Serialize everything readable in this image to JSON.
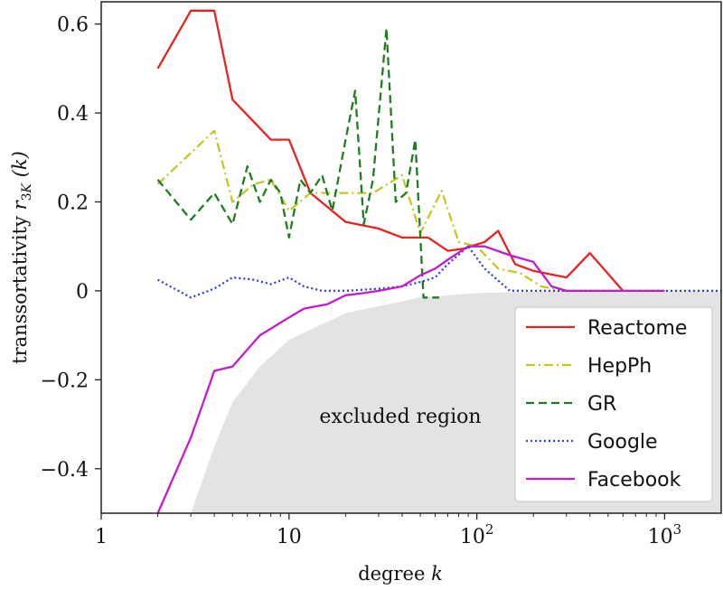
{
  "chart_data": {
    "type": "line",
    "xscale": "log",
    "xlim": [
      1,
      2000
    ],
    "ylim": [
      -0.5,
      0.65
    ],
    "xlabel": "degree k",
    "ylabel": "transsortativity r3K (k)",
    "xticks": [
      {
        "value": 1,
        "label": "1"
      },
      {
        "value": 10,
        "label": "10"
      },
      {
        "value": 100,
        "label": "10",
        "sup": "2"
      },
      {
        "value": 1000,
        "label": "10",
        "sup": "3"
      }
    ],
    "yticks": [
      {
        "value": 0.6,
        "label": "0.6"
      },
      {
        "value": 0.4,
        "label": "0.4"
      },
      {
        "value": 0.2,
        "label": "0.2"
      },
      {
        "value": 0,
        "label": "0"
      },
      {
        "value": -0.2,
        "label": "−0.2"
      },
      {
        "value": -0.4,
        "label": "−0.4"
      }
    ],
    "annotation": "excluded region",
    "excluded_region_boundary": [
      [
        3,
        -0.5
      ],
      [
        4,
        -0.35
      ],
      [
        5,
        -0.25
      ],
      [
        7,
        -0.17
      ],
      [
        10,
        -0.11
      ],
      [
        20,
        -0.05
      ],
      [
        50,
        -0.015
      ],
      [
        100,
        -0.005
      ],
      [
        300,
        0
      ],
      [
        2000,
        0
      ]
    ],
    "legend_position": "lower-right",
    "series": [
      {
        "name": "Reactome",
        "color": "#e8231f",
        "style": "solid",
        "x": [
          2,
          3,
          4,
          5,
          6.5,
          8,
          10,
          13,
          20,
          30,
          40,
          55,
          70,
          85,
          110,
          130,
          160,
          200,
          300,
          400,
          600
        ],
        "y": [
          0.5,
          0.63,
          0.63,
          0.43,
          0.38,
          0.34,
          0.34,
          0.22,
          0.155,
          0.14,
          0.12,
          0.12,
          0.09,
          0.095,
          0.11,
          0.135,
          0.06,
          0.045,
          0.03,
          0.085,
          0
        ]
      },
      {
        "name": "HepPh",
        "color": "#c6c627",
        "style": "dashdot",
        "x": [
          2,
          4,
          5,
          6.5,
          8,
          10,
          13,
          20,
          28,
          40,
          50,
          65,
          80,
          100,
          130,
          170,
          220,
          300
        ],
        "y": [
          0.24,
          0.36,
          0.2,
          0.24,
          0.25,
          0.18,
          0.22,
          0.22,
          0.22,
          0.26,
          0.13,
          0.225,
          0.11,
          0.1,
          0.05,
          0.04,
          0.01,
          0
        ]
      },
      {
        "name": "GR",
        "color": "#1e7d1e",
        "style": "dashed",
        "x": [
          2,
          3,
          4,
          5,
          6,
          7,
          8,
          9,
          10,
          11.5,
          13,
          15,
          17,
          20,
          22.5,
          25,
          28,
          33,
          37,
          42,
          47,
          52,
          57,
          63
        ],
        "y": [
          0.25,
          0.16,
          0.22,
          0.15,
          0.28,
          0.2,
          0.25,
          0.22,
          0.12,
          0.25,
          0.22,
          0.26,
          0.18,
          0.34,
          0.45,
          0.15,
          0.25,
          0.59,
          0.2,
          0.22,
          0.34,
          -0.015,
          -0.015,
          -0.015
        ]
      },
      {
        "name": "Google",
        "color": "#2e3de0",
        "style": "dotted",
        "x": [
          2,
          3,
          4,
          5,
          6.5,
          8,
          10,
          12,
          15,
          20,
          30,
          40,
          50,
          60,
          70,
          90,
          110,
          150,
          300,
          1000,
          2000
        ],
        "y": [
          0.025,
          -0.015,
          0.005,
          0.03,
          0.025,
          0.015,
          0.03,
          0.01,
          0,
          0,
          0.005,
          0.01,
          0.02,
          0.03,
          0.06,
          0.1,
          0.05,
          0,
          0,
          0,
          0
        ]
      },
      {
        "name": "Facebook",
        "color": "#c21ccc",
        "style": "solid",
        "x": [
          2,
          3,
          3.5,
          4,
          5,
          7,
          10,
          12,
          16,
          20,
          25,
          30,
          40,
          50,
          60,
          70,
          90,
          110,
          150,
          200,
          250,
          300,
          1000
        ],
        "y": [
          -0.5,
          -0.33,
          -0.25,
          -0.18,
          -0.17,
          -0.1,
          -0.06,
          -0.04,
          -0.03,
          -0.01,
          -0.005,
          0,
          0.01,
          0.035,
          0.05,
          0.07,
          0.1,
          0.1,
          0.08,
          0.065,
          0.01,
          0,
          0
        ]
      }
    ]
  }
}
